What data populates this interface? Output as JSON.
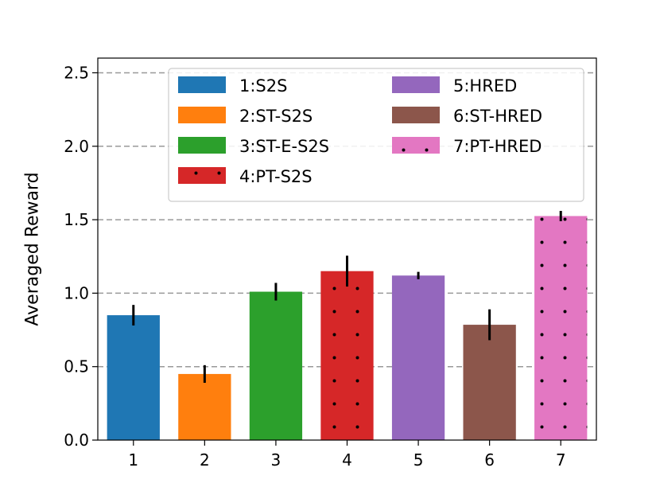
{
  "chart_data": {
    "type": "bar",
    "title": "",
    "xlabel": "",
    "ylabel": "Averaged Reward",
    "ylim": [
      0,
      2.6
    ],
    "yticks": [
      "0.0",
      "0.5",
      "1.0",
      "1.5",
      "2.0",
      "2.5"
    ],
    "grid": "horizontal-dashed",
    "legend_position": "top",
    "categories": [
      "1",
      "2",
      "3",
      "4",
      "5",
      "6",
      "7"
    ],
    "values": [
      0.85,
      0.45,
      1.01,
      1.15,
      1.12,
      0.785,
      1.525
    ],
    "errors": [
      0.07,
      0.06,
      0.06,
      0.105,
      0.025,
      0.105,
      0.035
    ],
    "legend": [
      {
        "label": "1:S2S",
        "color": "#1f77b4",
        "hatch": false
      },
      {
        "label": "2:ST-S2S",
        "color": "#ff7f0e",
        "hatch": false
      },
      {
        "label": "3:ST-E-S2S",
        "color": "#2ca02c",
        "hatch": false
      },
      {
        "label": "4:PT-S2S",
        "color": "#d62728",
        "hatch": true
      },
      {
        "label": "5:HRED",
        "color": "#9467bd",
        "hatch": false
      },
      {
        "label": "6:ST-HRED",
        "color": "#8c564b",
        "hatch": false
      },
      {
        "label": "7:PT-HRED",
        "color": "#e377c2",
        "hatch": true
      }
    ]
  }
}
